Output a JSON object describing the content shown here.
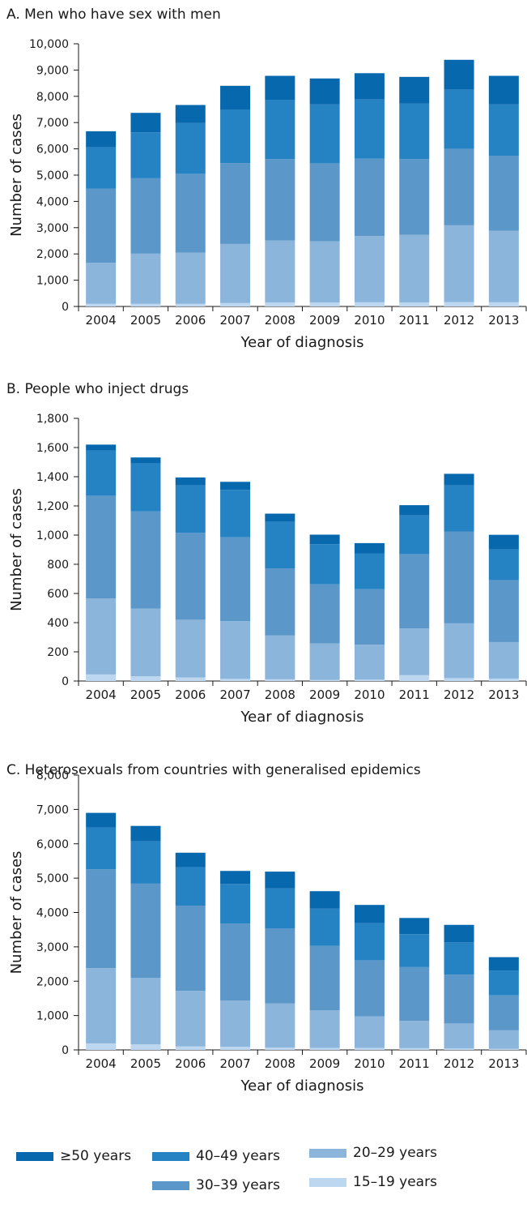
{
  "colors": {
    "c15_19": "#bcd7ef",
    "c20_29": "#8cb5dc",
    "c30_39": "#5b97c9",
    "c40_49": "#2583c4",
    "c50plus": "#0868ae"
  },
  "legend": [
    {
      "label": "≥50 years",
      "color_key": "c50plus"
    },
    {
      "label": "40–49 years",
      "color_key": "c40_49"
    },
    {
      "label": "20–29 years",
      "color_key": "c20_29"
    },
    {
      "label": "30–39 years",
      "color_key": "c30_39"
    },
    {
      "label": "15–19 years",
      "color_key": "c15_19"
    }
  ],
  "chart_data": [
    {
      "type": "bar",
      "stacked": true,
      "title": "A. Men who have sex with men",
      "xlabel": "Year of diagnosis",
      "ylabel": "Number of cases",
      "categories": [
        "2004",
        "2005",
        "2006",
        "2007",
        "2008",
        "2009",
        "2010",
        "2011",
        "2012",
        "2013"
      ],
      "ylim": [
        0,
        10000
      ],
      "yticks": [
        "0",
        "1,000",
        "2,000",
        "3,000",
        "4,000",
        "5,000",
        "6,000",
        "7,000",
        "8,000",
        "9,000",
        "10,000"
      ],
      "ytick_values": [
        0,
        1000,
        2000,
        3000,
        4000,
        5000,
        6000,
        7000,
        8000,
        9000,
        10000
      ],
      "series": [
        {
          "name": "15–19 years",
          "color_key": "c15_19",
          "values": [
            100,
            100,
            100,
            130,
            150,
            150,
            160,
            150,
            170,
            160
          ]
        },
        {
          "name": "20–29 years",
          "color_key": "c20_29",
          "values": [
            1560,
            1910,
            1950,
            2250,
            2360,
            2330,
            2520,
            2580,
            2920,
            2720
          ]
        },
        {
          "name": "30–39 years",
          "color_key": "c30_39",
          "values": [
            2830,
            2870,
            3000,
            3080,
            3100,
            2970,
            2950,
            2880,
            2910,
            2860
          ]
        },
        {
          "name": "40–49 years",
          "color_key": "c40_49",
          "values": [
            1570,
            1750,
            1930,
            2040,
            2260,
            2240,
            2250,
            2110,
            2250,
            1950
          ]
        },
        {
          "name": "≥50 years",
          "color_key": "c50plus",
          "values": [
            610,
            740,
            690,
            900,
            910,
            990,
            1000,
            1020,
            1140,
            1090
          ]
        }
      ]
    },
    {
      "type": "bar",
      "stacked": true,
      "title": "B. People who inject drugs",
      "xlabel": "Year of diagnosis",
      "ylabel": "Number of cases",
      "categories": [
        "2004",
        "2005",
        "2006",
        "2007",
        "2008",
        "2009",
        "2010",
        "2011",
        "2012",
        "2013"
      ],
      "ylim": [
        0,
        1800
      ],
      "yticks": [
        "0",
        "200",
        "400",
        "600",
        "800",
        "1,000",
        "1,200",
        "1,400",
        "1,600",
        "1,800"
      ],
      "ytick_values": [
        0,
        200,
        400,
        600,
        800,
        1000,
        1200,
        1400,
        1600,
        1800
      ],
      "series": [
        {
          "name": "15–19 years",
          "color_key": "c15_19",
          "values": [
            45,
            32,
            25,
            15,
            12,
            8,
            10,
            40,
            20,
            17
          ]
        },
        {
          "name": "20–29 years",
          "color_key": "c20_29",
          "values": [
            520,
            465,
            395,
            395,
            300,
            250,
            240,
            320,
            375,
            250
          ]
        },
        {
          "name": "30–39 years",
          "color_key": "c30_39",
          "values": [
            705,
            665,
            595,
            575,
            460,
            405,
            380,
            510,
            630,
            425
          ]
        },
        {
          "name": "40–49 years",
          "color_key": "c40_49",
          "values": [
            310,
            330,
            325,
            325,
            320,
            275,
            245,
            265,
            315,
            210
          ]
        },
        {
          "name": "≥50 years",
          "color_key": "c50plus",
          "values": [
            40,
            40,
            55,
            55,
            55,
            65,
            70,
            70,
            80,
            100
          ]
        }
      ]
    },
    {
      "type": "bar",
      "stacked": true,
      "title": "C. Heterosexuals from countries with generalised epidemics",
      "xlabel": "Year of diagnosis",
      "ylabel": "Number of cases",
      "categories": [
        "2004",
        "2005",
        "2006",
        "2007",
        "2008",
        "2009",
        "2010",
        "2011",
        "2012",
        "2013"
      ],
      "ylim": [
        0,
        8000
      ],
      "yticks": [
        "0",
        "1,000",
        "2,000",
        "3,000",
        "4,000",
        "5,000",
        "6,000",
        "7,000",
        "8,000"
      ],
      "ytick_values": [
        0,
        1000,
        2000,
        3000,
        4000,
        5000,
        6000,
        7000,
        8000
      ],
      "series": [
        {
          "name": "15–19 years",
          "color_key": "c15_19",
          "values": [
            190,
            160,
            100,
            90,
            70,
            60,
            60,
            50,
            40,
            30
          ]
        },
        {
          "name": "20–29 years",
          "color_key": "c20_29",
          "values": [
            2190,
            1940,
            1620,
            1350,
            1280,
            1090,
            920,
            800,
            730,
            540
          ]
        },
        {
          "name": "30–39 years",
          "color_key": "c30_39",
          "values": [
            2880,
            2740,
            2480,
            2240,
            2190,
            1880,
            1630,
            1560,
            1420,
            1020
          ]
        },
        {
          "name": "40–49 years",
          "color_key": "c40_49",
          "values": [
            1210,
            1230,
            1120,
            1150,
            1160,
            1080,
            1080,
            960,
            940,
            720
          ]
        },
        {
          "name": "≥50 years",
          "color_key": "c50plus",
          "values": [
            430,
            450,
            420,
            380,
            490,
            510,
            530,
            470,
            510,
            390
          ]
        }
      ]
    }
  ]
}
